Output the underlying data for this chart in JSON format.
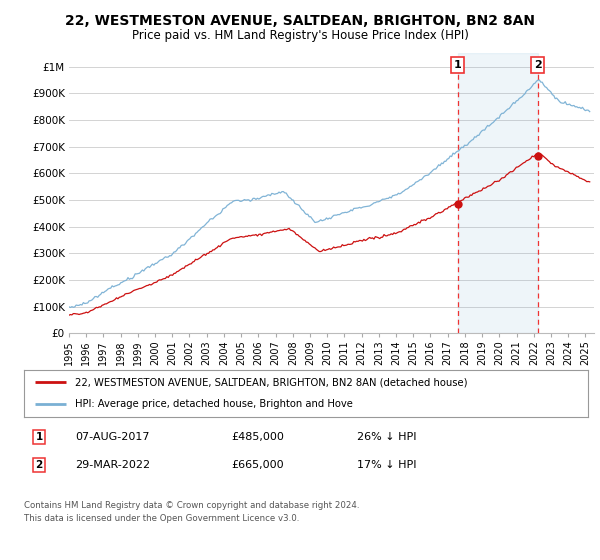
{
  "title": "22, WESTMESTON AVENUE, SALTDEAN, BRIGHTON, BN2 8AN",
  "subtitle": "Price paid vs. HM Land Registry's House Price Index (HPI)",
  "title_fontsize": 10,
  "subtitle_fontsize": 8.5,
  "ylim": [
    0,
    1050000
  ],
  "yticks": [
    0,
    100000,
    200000,
    300000,
    400000,
    500000,
    600000,
    700000,
    800000,
    900000,
    1000000
  ],
  "ytick_labels": [
    "£0",
    "£100K",
    "£200K",
    "£300K",
    "£400K",
    "£500K",
    "£600K",
    "£700K",
    "£800K",
    "£900K",
    "£1M"
  ],
  "hpi_color": "#7ab0d4",
  "price_color": "#cc1111",
  "sale1_x": 2017.58,
  "sale1_y": 485000,
  "sale2_x": 2022.22,
  "sale2_y": 665000,
  "vline_color": "#ee3333",
  "background_color": "#ffffff",
  "grid_color": "#cccccc",
  "legend_label_price": "22, WESTMESTON AVENUE, SALTDEAN, BRIGHTON, BN2 8AN (detached house)",
  "legend_label_hpi": "HPI: Average price, detached house, Brighton and Hove",
  "footer": "Contains HM Land Registry data © Crown copyright and database right 2024.\nThis data is licensed under the Open Government Licence v3.0.",
  "xmin": 1995.0,
  "xmax": 2025.5
}
